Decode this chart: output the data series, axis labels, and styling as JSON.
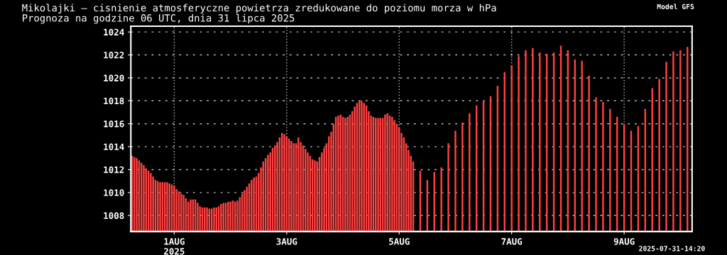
{
  "chart_data": {
    "type": "bar",
    "title": "Mikolajki – cisnienie atmosferyczne powietrza zredukowane do poziomu morza w hPa",
    "subtitle": "Prognoza na godzine 06 UTC, dnia 31 lipca 2025",
    "annotations": [
      "Model GFS",
      "2025-07-31-14:20"
    ],
    "x": [
      "2025-07-31T06:00",
      "2025-07-31T07:00",
      "2025-07-31T08:00",
      "2025-07-31T09:00",
      "2025-07-31T10:00",
      "2025-07-31T11:00",
      "2025-07-31T12:00",
      "2025-07-31T13:00",
      "2025-07-31T14:00",
      "2025-07-31T15:00",
      "2025-07-31T16:00",
      "2025-07-31T17:00",
      "2025-07-31T18:00",
      "2025-07-31T19:00",
      "2025-07-31T20:00",
      "2025-07-31T21:00",
      "2025-07-31T22:00",
      "2025-07-31T23:00",
      "2025-08-01T00:00",
      "2025-08-01T01:00",
      "2025-08-01T02:00",
      "2025-08-01T03:00",
      "2025-08-01T04:00",
      "2025-08-01T05:00",
      "2025-08-01T06:00",
      "2025-08-01T07:00",
      "2025-08-01T08:00",
      "2025-08-01T09:00",
      "2025-08-01T10:00",
      "2025-08-01T11:00",
      "2025-08-01T12:00",
      "2025-08-01T13:00",
      "2025-08-01T14:00",
      "2025-08-01T15:00",
      "2025-08-01T16:00",
      "2025-08-01T17:00",
      "2025-08-01T18:00",
      "2025-08-01T19:00",
      "2025-08-01T20:00",
      "2025-08-01T21:00",
      "2025-08-01T22:00",
      "2025-08-01T23:00",
      "2025-08-02T00:00",
      "2025-08-02T01:00",
      "2025-08-02T02:00",
      "2025-08-02T03:00",
      "2025-08-02T04:00",
      "2025-08-02T05:00",
      "2025-08-02T06:00",
      "2025-08-02T07:00",
      "2025-08-02T08:00",
      "2025-08-02T09:00",
      "2025-08-02T10:00",
      "2025-08-02T11:00",
      "2025-08-02T12:00",
      "2025-08-02T13:00",
      "2025-08-02T14:00",
      "2025-08-02T15:00",
      "2025-08-02T16:00",
      "2025-08-02T17:00",
      "2025-08-02T18:00",
      "2025-08-02T19:00",
      "2025-08-02T20:00",
      "2025-08-02T21:00",
      "2025-08-02T22:00",
      "2025-08-02T23:00",
      "2025-08-03T00:00",
      "2025-08-03T01:00",
      "2025-08-03T02:00",
      "2025-08-03T03:00",
      "2025-08-03T04:00",
      "2025-08-03T05:00",
      "2025-08-03T06:00",
      "2025-08-03T07:00",
      "2025-08-03T08:00",
      "2025-08-03T09:00",
      "2025-08-03T10:00",
      "2025-08-03T11:00",
      "2025-08-03T12:00",
      "2025-08-03T13:00",
      "2025-08-03T14:00",
      "2025-08-03T15:00",
      "2025-08-03T16:00",
      "2025-08-03T17:00",
      "2025-08-03T18:00",
      "2025-08-03T19:00",
      "2025-08-03T20:00",
      "2025-08-03T21:00",
      "2025-08-03T22:00",
      "2025-08-03T23:00",
      "2025-08-04T00:00",
      "2025-08-04T01:00",
      "2025-08-04T02:00",
      "2025-08-04T03:00",
      "2025-08-04T04:00",
      "2025-08-04T05:00",
      "2025-08-04T06:00",
      "2025-08-04T07:00",
      "2025-08-04T08:00",
      "2025-08-04T09:00",
      "2025-08-04T10:00",
      "2025-08-04T11:00",
      "2025-08-04T12:00",
      "2025-08-04T13:00",
      "2025-08-04T14:00",
      "2025-08-04T15:00",
      "2025-08-04T16:00",
      "2025-08-04T17:00",
      "2025-08-04T18:00",
      "2025-08-04T19:00",
      "2025-08-04T20:00",
      "2025-08-04T21:00",
      "2025-08-04T22:00",
      "2025-08-04T23:00",
      "2025-08-05T00:00",
      "2025-08-05T01:00",
      "2025-08-05T02:00",
      "2025-08-05T03:00",
      "2025-08-05T04:00",
      "2025-08-05T05:00",
      "2025-08-05T06:00",
      "2025-08-05T09:00",
      "2025-08-05T12:00",
      "2025-08-05T15:00",
      "2025-08-05T18:00",
      "2025-08-05T21:00",
      "2025-08-06T00:00",
      "2025-08-06T03:00",
      "2025-08-06T06:00",
      "2025-08-06T09:00",
      "2025-08-06T12:00",
      "2025-08-06T15:00",
      "2025-08-06T18:00",
      "2025-08-06T21:00",
      "2025-08-07T00:00",
      "2025-08-07T03:00",
      "2025-08-07T06:00",
      "2025-08-07T09:00",
      "2025-08-07T12:00",
      "2025-08-07T15:00",
      "2025-08-07T18:00",
      "2025-08-07T21:00",
      "2025-08-08T00:00",
      "2025-08-08T03:00",
      "2025-08-08T06:00",
      "2025-08-08T09:00",
      "2025-08-08T12:00",
      "2025-08-08T15:00",
      "2025-08-08T18:00",
      "2025-08-08T21:00",
      "2025-08-09T00:00",
      "2025-08-09T03:00",
      "2025-08-09T06:00",
      "2025-08-09T09:00",
      "2025-08-09T12:00",
      "2025-08-09T15:00",
      "2025-08-09T18:00",
      "2025-08-09T21:00",
      "2025-08-10T00:00",
      "2025-08-10T03:00"
    ],
    "series": [
      {
        "color": "#ff4040",
        "values": [
          1013.2,
          1013.1,
          1013.0,
          1012.8,
          1012.6,
          1012.4,
          1012.1,
          1011.9,
          1011.7,
          1011.4,
          1011.1,
          1011.0,
          1010.9,
          1010.9,
          1010.9,
          1010.9,
          1010.8,
          1010.7,
          1010.6,
          1010.3,
          1010.1,
          1009.9,
          1009.8,
          1009.5,
          1009.2,
          1009.4,
          1009.4,
          1009.4,
          1009.1,
          1008.8,
          1008.7,
          1008.7,
          1008.7,
          1008.6,
          1008.6,
          1008.7,
          1008.7,
          1008.8,
          1009.0,
          1009.1,
          1009.1,
          1009.2,
          1009.2,
          1009.3,
          1009.2,
          1009.3,
          1009.6,
          1009.9,
          1010.2,
          1010.5,
          1010.8,
          1011.1,
          1011.3,
          1011.4,
          1011.7,
          1012.2,
          1012.7,
          1013.0,
          1013.3,
          1013.5,
          1013.9,
          1014.1,
          1014.4,
          1014.8,
          1015.2,
          1015.1,
          1014.9,
          1014.7,
          1014.5,
          1014.3,
          1014.3,
          1014.8,
          1014.4,
          1014.1,
          1013.8,
          1013.5,
          1013.2,
          1012.9,
          1012.8,
          1012.7,
          1013.1,
          1013.5,
          1013.9,
          1014.3,
          1014.9,
          1015.3,
          1016.0,
          1016.6,
          1016.7,
          1016.8,
          1016.6,
          1016.5,
          1016.6,
          1016.8,
          1017.1,
          1017.5,
          1017.8,
          1018.0,
          1018.0,
          1017.8,
          1017.6,
          1017.1,
          1016.7,
          1016.6,
          1016.5,
          1016.5,
          1016.5,
          1016.5,
          1016.8,
          1016.9,
          1016.7,
          1016.6,
          1016.3,
          1016.0,
          1015.7,
          1015.2,
          1014.8,
          1014.3,
          1013.7,
          1013.2,
          1012.7,
          1011.9,
          1011.1,
          1011.8,
          1012.2,
          1014.3,
          1015.4,
          1016.1,
          1016.9,
          1017.6,
          1018.0,
          1018.4,
          1019.3,
          1020.5,
          1021.1,
          1021.9,
          1022.4,
          1022.6,
          1022.2,
          1022.1,
          1022.2,
          1022.8,
          1022.4,
          1021.6,
          1021.5,
          1020.2,
          1018.3,
          1017.9,
          1017.3,
          1016.6,
          1016.0,
          1015.4,
          1015.8,
          1017.3,
          1019.1,
          1019.9,
          1021.4,
          1022.3,
          1022.4,
          1022.7
        ]
      }
    ],
    "xlim": [
      "2025-07-31T05:30",
      "2025-08-10T05:00"
    ],
    "xticks": [
      {
        "value": "2025-08-01",
        "label": "1AUG\n2025"
      },
      {
        "value": "2025-08-03",
        "label": "3AUG"
      },
      {
        "value": "2025-08-05",
        "label": "5AUG"
      },
      {
        "value": "2025-08-07",
        "label": "7AUG"
      },
      {
        "value": "2025-08-09",
        "label": "9AUG"
      }
    ],
    "ylim": [
      1006.6,
      1024.5
    ],
    "yticks": [
      1008,
      1010,
      1012,
      1014,
      1016,
      1018,
      1020,
      1022,
      1024
    ],
    "grid": true
  }
}
